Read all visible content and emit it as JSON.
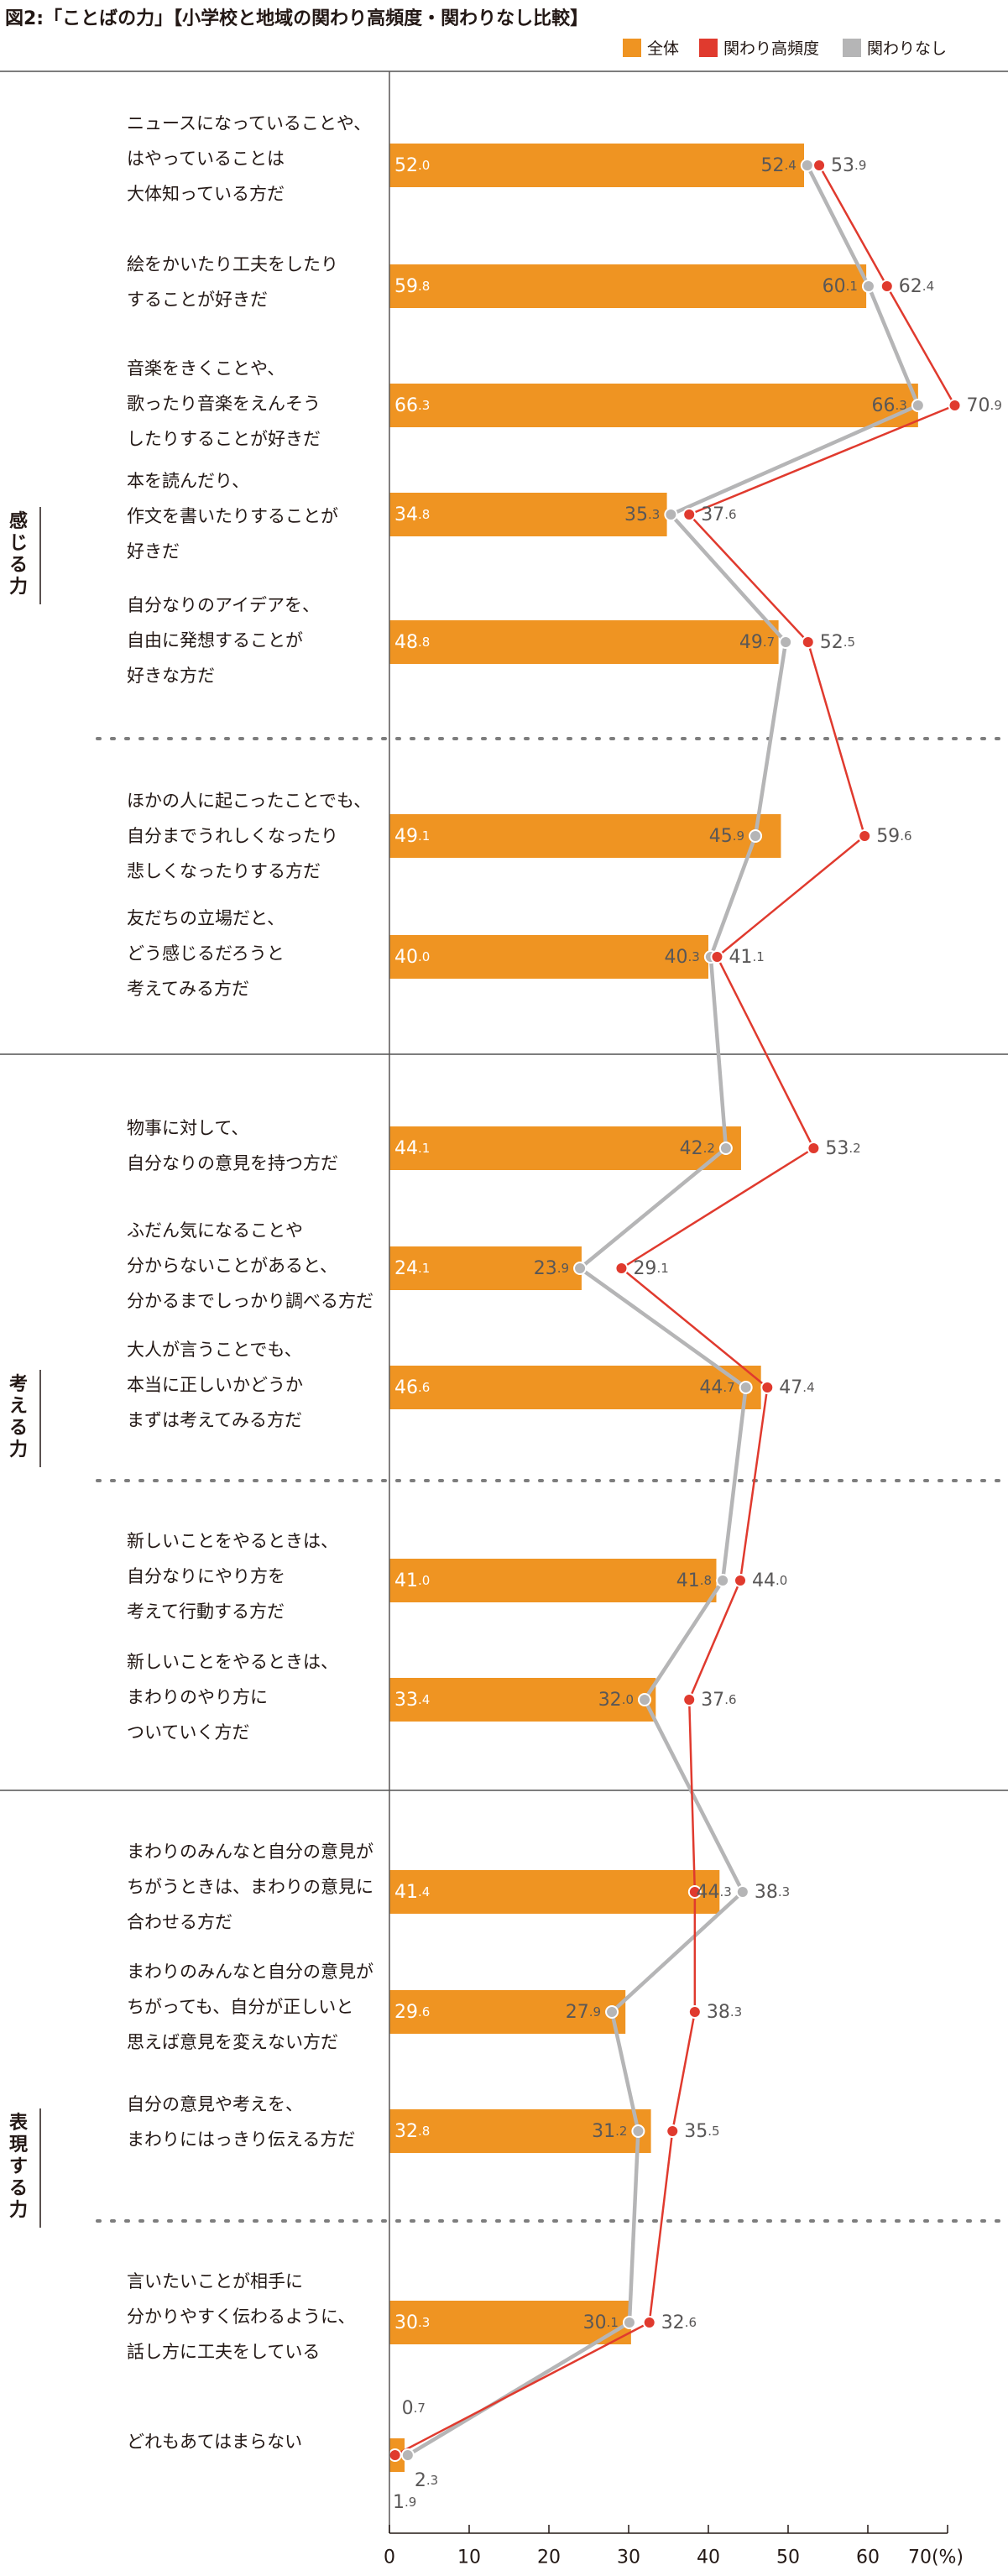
{
  "title": "図2:「ことばの力」【小学校と地域の関わり高頻度・関わりなし比較】",
  "chart_data": {
    "type": "bar",
    "title": "図2:「ことばの力」【小学校と地域の関わり高頻度・関わりなし比較】",
    "xlim": [
      0,
      70
    ],
    "xticks": [
      "0",
      "10",
      "20",
      "30",
      "40",
      "50",
      "60",
      "70(%)"
    ],
    "legend_position": "top-right",
    "legend": [
      {
        "name": "全体",
        "color": "#ef9422",
        "kind": "bar"
      },
      {
        "name": "関わり高頻度",
        "color": "#e03a2e",
        "kind": "line"
      },
      {
        "name": "関わりなし",
        "color": "#b5b5b6",
        "kind": "line"
      }
    ],
    "groups": [
      {
        "name": "感じる力",
        "from": 0,
        "to": 6
      },
      {
        "name": "考える力",
        "from": 7,
        "to": 11
      },
      {
        "name": "表現する力",
        "from": 12,
        "to": 16
      }
    ],
    "categories": [
      [
        "ニュースになっていることや、",
        "はやっていることは",
        "大体知っている方だ"
      ],
      [
        "絵をかいたり工夫をしたり",
        "することが好きだ"
      ],
      [
        "音楽をきくことや、",
        "歌ったり音楽をえんそう",
        "したりすることが好きだ"
      ],
      [
        "本を読んだり、",
        "作文を書いたりすることが",
        "好きだ"
      ],
      [
        "自分なりのアイデアを、",
        "自由に発想することが",
        "好きな方だ"
      ],
      [
        "ほかの人に起こったことでも、",
        "自分までうれしくなったり",
        "悲しくなったりする方だ"
      ],
      [
        "友だちの立場だと、",
        "どう感じるだろうと",
        "考えてみる方だ"
      ],
      [
        "物事に対して、",
        "自分なりの意見を持つ方だ"
      ],
      [
        "ふだん気になることや",
        "分からないことがあると、",
        "分かるまでしっかり調べる方だ"
      ],
      [
        "大人が言うことでも、",
        "本当に正しいかどうか",
        "まずは考えてみる方だ"
      ],
      [
        "新しいことをやるときは、",
        "自分なりにやり方を",
        "考えて行動する方だ"
      ],
      [
        "新しいことをやるときは、",
        "まわりのやり方に",
        "ついていく方だ"
      ],
      [
        "まわりのみんなと自分の意見が",
        "ちがうときは、まわりの意見に",
        "合わせる方だ"
      ],
      [
        "まわりのみんなと自分の意見が",
        "ちがっても、自分が正しいと",
        "思えば意見を変えない方だ"
      ],
      [
        "自分の意見や考えを、",
        "まわりにはっきり伝える方だ"
      ],
      [
        "言いたいことが相手に",
        "分かりやすく伝わるように、",
        "話し方に工夫をしている"
      ],
      [
        "どれもあてはまらない"
      ]
    ],
    "series": [
      {
        "name": "全体",
        "values": [
          "52.0",
          "59.8",
          "66.3",
          "34.8",
          "48.8",
          "49.1",
          "40.0",
          "44.1",
          "24.1",
          "46.6",
          "41.0",
          "33.4",
          "41.4",
          "29.6",
          "32.8",
          "30.3",
          "1.9"
        ]
      },
      {
        "name": "関わり高頻度",
        "values": [
          "53.9",
          "62.4",
          "70.9",
          "37.6",
          "52.5",
          "59.6",
          "41.1",
          "53.2",
          "29.1",
          "47.4",
          "44.0",
          "37.6",
          "38.3",
          "38.3",
          "35.5",
          "32.6",
          "0.7"
        ]
      },
      {
        "name": "関わりなし",
        "values": [
          "52.4",
          "60.1",
          "66.3",
          "35.3",
          "49.7",
          "45.9",
          "40.3",
          "42.2",
          "23.9",
          "44.7",
          "41.8",
          "32.0",
          "44.3",
          "27.9",
          "31.2",
          "30.1",
          "2.3"
        ]
      }
    ]
  }
}
